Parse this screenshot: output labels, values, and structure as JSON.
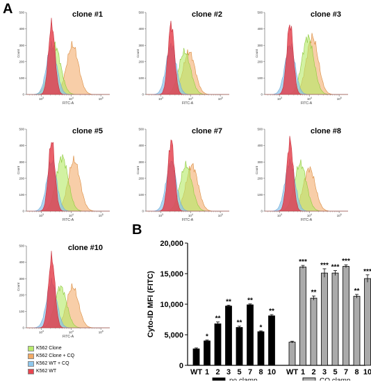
{
  "panel_a_label": "A",
  "panel_b_label": "B",
  "legend": [
    {
      "label": "K562 Clone",
      "color": "#b9ec6e"
    },
    {
      "label": "K562 Clone + CQ",
      "color": "#f2aa66"
    },
    {
      "label": "K562 WT + CQ",
      "color": "#8ec8ee"
    },
    {
      "label": "K562 WT",
      "color": "#e8454f"
    }
  ],
  "chart_data": [
    {
      "type": "area",
      "title": "clone #1",
      "xlabel": "FITC-A",
      "ylabel": "Count",
      "xscale": "log",
      "ylim": [
        0,
        500
      ],
      "yticks": [
        "0",
        "100",
        "200",
        "300",
        "400",
        "500"
      ],
      "xticks": [
        "10^3",
        "10^4",
        "10^5"
      ],
      "series": [
        {
          "name": "K562 WT",
          "peak_log": 3.35,
          "height": 430
        },
        {
          "name": "K562 WT + CQ",
          "peak_log": 3.35,
          "height": 300
        },
        {
          "name": "K562 Clone",
          "peak_log": 3.45,
          "height": 300
        },
        {
          "name": "K562 Clone + CQ",
          "peak_log": 4.05,
          "height": 300
        }
      ]
    },
    {
      "type": "area",
      "title": "clone #2",
      "xlabel": "FITC-A",
      "ylabel": "Count",
      "xscale": "log",
      "ylim": [
        0,
        500
      ],
      "yticks": [
        "0",
        "100",
        "200",
        "300",
        "400",
        "500"
      ],
      "xticks": [
        "10^3",
        "10^4",
        "10^5"
      ],
      "series": [
        {
          "name": "K562 WT",
          "peak_log": 3.35,
          "height": 430
        },
        {
          "name": "K562 WT + CQ",
          "peak_log": 3.35,
          "height": 300
        },
        {
          "name": "K562 Clone",
          "peak_log": 3.8,
          "height": 260
        },
        {
          "name": "K562 Clone + CQ",
          "peak_log": 3.95,
          "height": 260
        }
      ]
    },
    {
      "type": "area",
      "title": "clone #3",
      "xlabel": "FITC-A",
      "ylabel": "Count",
      "xscale": "log",
      "ylim": [
        0,
        500
      ],
      "yticks": [
        "0",
        "100",
        "200",
        "300",
        "400",
        "500"
      ],
      "xticks": [
        "10^3",
        "10^4",
        "10^5"
      ],
      "series": [
        {
          "name": "K562 WT",
          "peak_log": 3.35,
          "height": 430
        },
        {
          "name": "K562 WT + CQ",
          "peak_log": 3.35,
          "height": 300
        },
        {
          "name": "K562 Clone",
          "peak_log": 3.95,
          "height": 350
        },
        {
          "name": "K562 Clone + CQ",
          "peak_log": 4.1,
          "height": 350
        }
      ]
    },
    {
      "type": "area",
      "title": "clone #5",
      "xlabel": "FITC-A",
      "ylabel": "Count",
      "xscale": "log",
      "ylim": [
        0,
        500
      ],
      "yticks": [
        "0",
        "100",
        "200",
        "300",
        "400",
        "500"
      ],
      "xticks": [
        "10^3",
        "10^4",
        "10^5"
      ],
      "series": [
        {
          "name": "K562 WT",
          "peak_log": 3.35,
          "height": 430
        },
        {
          "name": "K562 WT + CQ",
          "peak_log": 3.35,
          "height": 300
        },
        {
          "name": "K562 Clone",
          "peak_log": 3.7,
          "height": 330
        },
        {
          "name": "K562 Clone + CQ",
          "peak_log": 4.1,
          "height": 310
        }
      ]
    },
    {
      "type": "area",
      "title": "clone #7",
      "xlabel": "FITC-A",
      "ylabel": "Count",
      "xscale": "log",
      "ylim": [
        0,
        500
      ],
      "yticks": [
        "0",
        "100",
        "200",
        "300",
        "400",
        "500"
      ],
      "xticks": [
        "10^3",
        "10^4",
        "10^5"
      ],
      "series": [
        {
          "name": "K562 WT",
          "peak_log": 3.35,
          "height": 430
        },
        {
          "name": "K562 WT + CQ",
          "peak_log": 3.35,
          "height": 300
        },
        {
          "name": "K562 Clone",
          "peak_log": 3.85,
          "height": 280
        },
        {
          "name": "K562 Clone + CQ",
          "peak_log": 4.05,
          "height": 280
        }
      ]
    },
    {
      "type": "area",
      "title": "clone #8",
      "xlabel": "FITC-A",
      "ylabel": "Count",
      "xscale": "log",
      "ylim": [
        0,
        500
      ],
      "yticks": [
        "0",
        "100",
        "200",
        "300",
        "400",
        "500"
      ],
      "xticks": [
        "10^3",
        "10^4",
        "10^5"
      ],
      "series": [
        {
          "name": "K562 WT",
          "peak_log": 3.35,
          "height": 430
        },
        {
          "name": "K562 WT + CQ",
          "peak_log": 3.35,
          "height": 300
        },
        {
          "name": "K562 Clone",
          "peak_log": 3.7,
          "height": 290
        },
        {
          "name": "K562 Clone + CQ",
          "peak_log": 4.0,
          "height": 260
        }
      ]
    },
    {
      "type": "area",
      "title": "clone #10",
      "xlabel": "FITC-A",
      "ylabel": "Count",
      "xscale": "log",
      "ylim": [
        0,
        500
      ],
      "yticks": [
        "0",
        "100",
        "200",
        "300",
        "400",
        "500"
      ],
      "xticks": [
        "10^3",
        "10^4",
        "10^5"
      ],
      "series": [
        {
          "name": "K562 WT",
          "peak_log": 3.35,
          "height": 430
        },
        {
          "name": "K562 WT + CQ",
          "peak_log": 3.35,
          "height": 280
        },
        {
          "name": "K562 Clone",
          "peak_log": 3.65,
          "height": 250
        },
        {
          "name": "K562 Clone + CQ",
          "peak_log": 4.05,
          "height": 250
        }
      ]
    },
    {
      "type": "bar",
      "ylabel": "Cyto-ID MFI (FITC)",
      "ylim": [
        0,
        20000
      ],
      "yticks": [
        "0",
        "5,000",
        "10,000",
        "15,000",
        "20,000"
      ],
      "groups": [
        {
          "name": "no clamp",
          "color": "#000000",
          "categories": [
            "WT",
            "1",
            "2",
            "3",
            "5",
            "7",
            "8",
            "10"
          ],
          "values": [
            2700,
            4000,
            6800,
            9700,
            6200,
            9900,
            5500,
            8100
          ],
          "errors": [
            150,
            150,
            300,
            150,
            200,
            150,
            150,
            200
          ],
          "significance": [
            "",
            "*",
            "**",
            "**",
            "**",
            "**",
            "*",
            "**"
          ]
        },
        {
          "name": "CQ clamp",
          "color": "#aaaaaa",
          "categories": [
            "WT",
            "1",
            "2",
            "3",
            "5",
            "7",
            "8",
            "10"
          ],
          "values": [
            3800,
            16100,
            11000,
            15100,
            15100,
            16200,
            11300,
            14200
          ],
          "errors": [
            150,
            250,
            350,
            700,
            400,
            250,
            300,
            600
          ],
          "significance": [
            "",
            "***",
            "**",
            "***",
            "***",
            "***",
            "**",
            "***"
          ]
        }
      ]
    }
  ]
}
